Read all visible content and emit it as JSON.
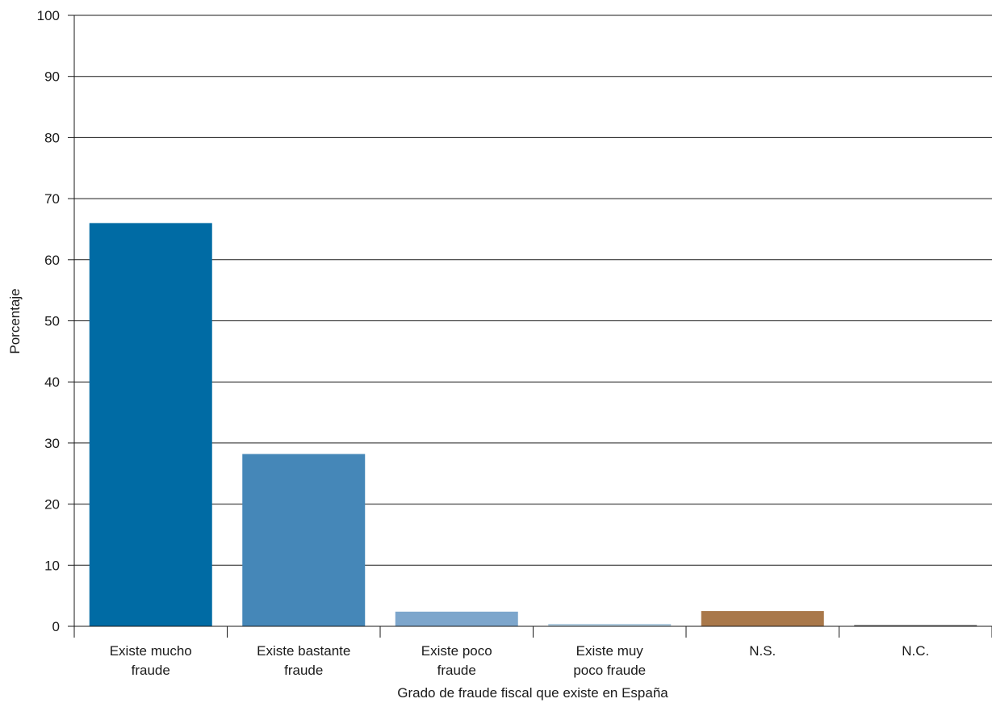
{
  "chart_data": {
    "type": "bar",
    "title": "",
    "xlabel": "Grado de fraude fiscal que existe en España",
    "ylabel": "Porcentaje",
    "ylim": [
      0,
      100
    ],
    "yticks": [
      0,
      10,
      20,
      30,
      40,
      50,
      60,
      70,
      80,
      90,
      100
    ],
    "grid": true,
    "legend": "none",
    "categories": [
      [
        "Existe mucho",
        "fraude"
      ],
      [
        "Existe bastante",
        "fraude"
      ],
      [
        "Existe poco",
        "fraude"
      ],
      [
        "Existe muy",
        "poco fraude"
      ],
      [
        "N.S."
      ],
      [
        "N.C."
      ]
    ],
    "values": [
      66,
      28.2,
      2.4,
      0.4,
      2.5,
      0.2
    ],
    "colors": [
      "#006ba4",
      "#4587b8",
      "#7da6cc",
      "#b3cde0",
      "#a9784a",
      "#5c5c5c"
    ]
  }
}
